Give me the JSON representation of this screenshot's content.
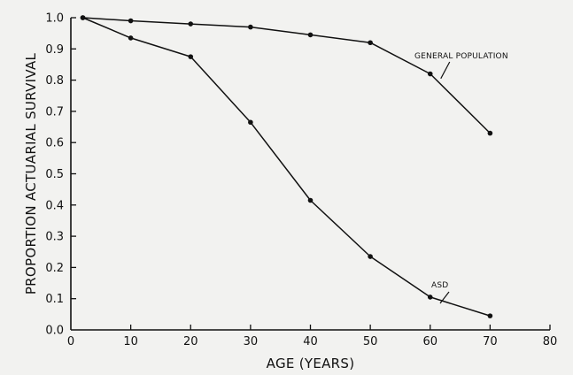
{
  "chart_data": {
    "type": "line",
    "title": "",
    "xlabel": "AGE (YEARS)",
    "ylabel": "PROPORTION ACTUARIAL SURVIVAL",
    "xlim": [
      0,
      80
    ],
    "ylim": [
      0.0,
      1.0
    ],
    "x_ticks": [
      "0",
      "10",
      "20",
      "30",
      "40",
      "50",
      "60",
      "70",
      "80"
    ],
    "y_ticks": [
      "0.0",
      "0.1",
      "0.2",
      "0.3",
      "0.4",
      "0.5",
      "0.6",
      "0.7",
      "0.8",
      "0.9",
      "1.0"
    ],
    "grid": false,
    "legend": "none",
    "series": [
      {
        "name": "GENERAL POPULATION",
        "x": [
          2,
          10,
          20,
          30,
          40,
          50,
          60,
          70
        ],
        "y": [
          1.0,
          0.99,
          0.98,
          0.97,
          0.945,
          0.92,
          0.82,
          0.63
        ]
      },
      {
        "name": "ASD",
        "x": [
          2,
          10,
          20,
          30,
          40,
          50,
          60,
          70
        ],
        "y": [
          1.0,
          0.935,
          0.875,
          0.665,
          0.415,
          0.235,
          0.105,
          0.045
        ]
      }
    ],
    "colors": {
      "line": "#111111",
      "background": "#f2f2f0"
    }
  }
}
